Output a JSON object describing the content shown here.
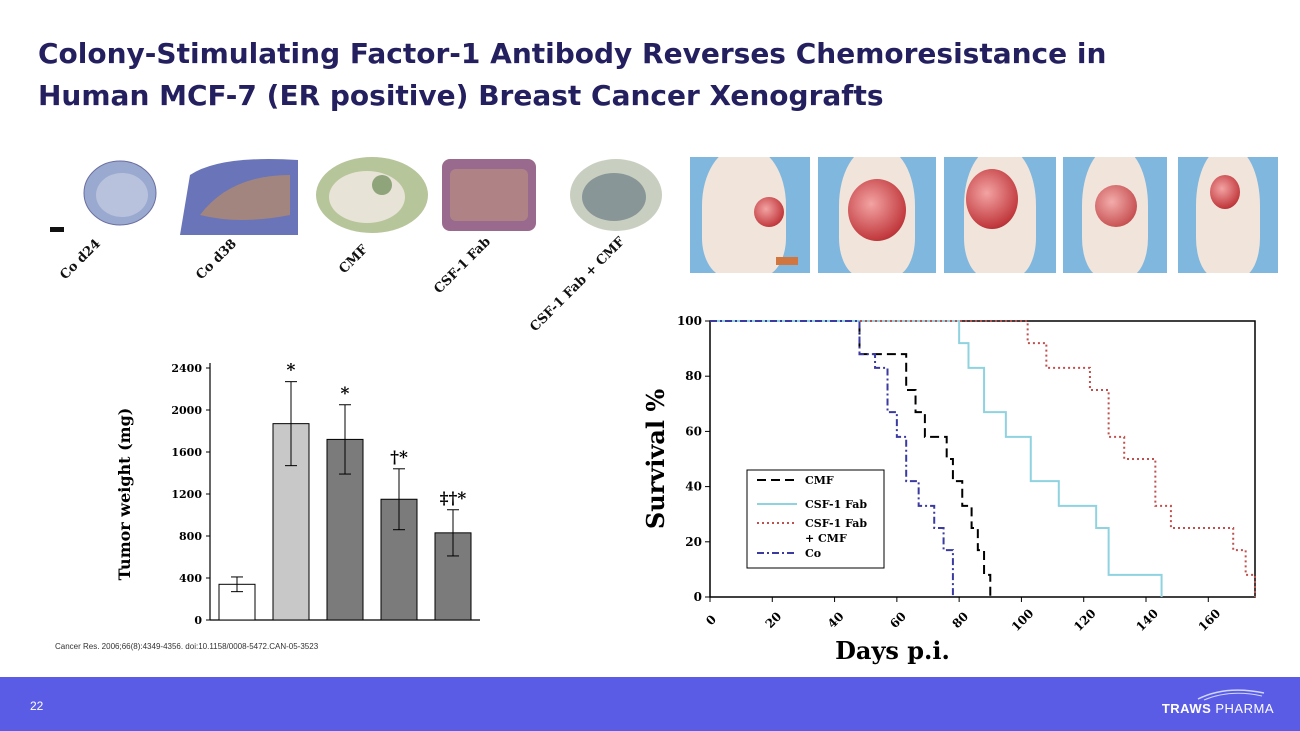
{
  "slide": {
    "title_line1": "Colony-Stimulating Factor-1 Antibody Reverses Chemoresistance in",
    "title_line2": "Human MCF-7 (ER positive) Breast Cancer Xenografts",
    "citation": "Cancer Res. 2006;66(8):4349-4356. doi:10.1158/0008-5472.CAN-05-3523",
    "page_number": "22",
    "logo_text_bold": "TRAWS",
    "logo_text_regular": " PHARMA"
  },
  "histology": {
    "labels": [
      "Co d24",
      "Co d38",
      "CMF",
      "CSF-1 Fab",
      "CSF-1 Fab + CMF"
    ]
  },
  "chart_data": [
    {
      "type": "bar",
      "title": "",
      "xlabel": "",
      "ylabel": "Tumor weight (mg)",
      "ylim": [
        0,
        2400
      ],
      "yticks": [
        "0",
        "400",
        "800",
        "1200",
        "1600",
        "2000",
        "2400"
      ],
      "categories": [
        "Co d24",
        "Co d38",
        "CMF",
        "CSF-1 Fab",
        "CSF-1 Fab + CMF"
      ],
      "values": [
        340,
        1870,
        1720,
        1150,
        830
      ],
      "errors": [
        70,
        400,
        330,
        290,
        220
      ],
      "annotations": [
        "",
        "*",
        "*",
        "†*",
        "‡†*"
      ],
      "colors": [
        "#ffffff",
        "#c8c8c8",
        "#7b7b7b",
        "#7b7b7b",
        "#7b7b7b"
      ]
    },
    {
      "type": "line",
      "title": "",
      "xlabel": "Days p.i.",
      "ylabel": "Survival %",
      "xlim": [
        0,
        175
      ],
      "ylim": [
        0,
        100
      ],
      "xticks": [
        "0",
        "20",
        "40",
        "60",
        "80",
        "100",
        "120",
        "140",
        "160"
      ],
      "yticks": [
        "0",
        "20",
        "40",
        "60",
        "80",
        "100"
      ],
      "legend": [
        "CMF",
        "CSF-1 Fab",
        "CSF-1 Fab",
        "+ CMF",
        "Co"
      ],
      "series": [
        {
          "name": "CMF",
          "color": "#000000",
          "dash": "9,5",
          "x": [
            0,
            47,
            48,
            62,
            63,
            66,
            69,
            76,
            78,
            81,
            84,
            86,
            88,
            90
          ],
          "y": [
            100,
            100,
            88,
            88,
            75,
            67,
            58,
            50,
            42,
            33,
            25,
            17,
            8,
            0
          ]
        },
        {
          "name": "CSF-1 Fab",
          "color": "#8fd2e0",
          "dash": "",
          "x": [
            0,
            77,
            80,
            83,
            88,
            95,
            103,
            112,
            124,
            128,
            145
          ],
          "y": [
            100,
            100,
            92,
            83,
            67,
            58,
            42,
            33,
            25,
            8,
            0
          ]
        },
        {
          "name": "CSF-1 Fab + CMF",
          "color": "#c0504d",
          "dash": "2,3",
          "x": [
            0,
            98,
            102,
            108,
            122,
            128,
            133,
            143,
            148,
            168,
            172,
            175
          ],
          "y": [
            100,
            100,
            92,
            83,
            75,
            58,
            50,
            33,
            25,
            17,
            8,
            0
          ]
        },
        {
          "name": "Co",
          "color": "#3a3aa0",
          "dash": "7,3,2,3",
          "x": [
            0,
            46,
            48,
            53,
            57,
            60,
            63,
            67,
            72,
            75,
            78
          ],
          "y": [
            100,
            100,
            88,
            83,
            67,
            58,
            42,
            33,
            25,
            17,
            0
          ]
        }
      ]
    }
  ]
}
